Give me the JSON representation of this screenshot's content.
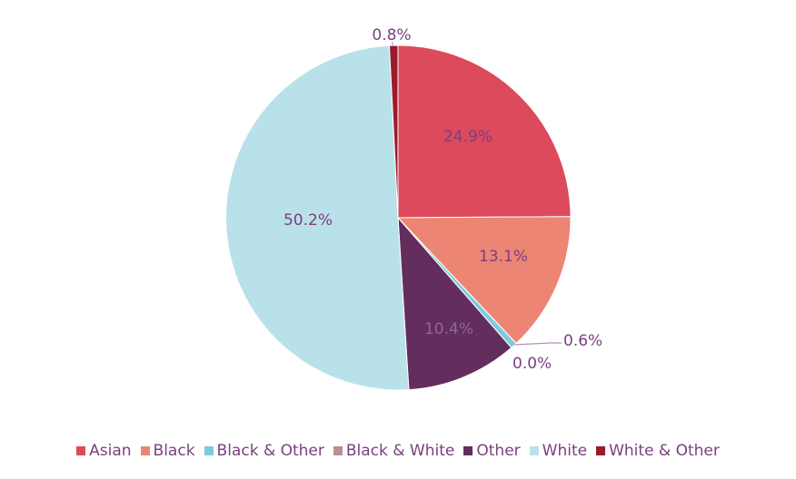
{
  "chart_data": {
    "type": "pie",
    "categories": [
      "Asian",
      "Black",
      "Black & Other",
      "Black & White",
      "Other",
      "White",
      "White & Other"
    ],
    "values": [
      24.9,
      13.1,
      0.6,
      0.0,
      10.4,
      50.2,
      0.8
    ],
    "labels": [
      "24.9%",
      "13.1%",
      "0.6%",
      "0.0%",
      "10.4%",
      "50.2%",
      "0.8%"
    ],
    "colors": [
      "#dc4a5c",
      "#ec8574",
      "#7ecbdc",
      "#b98e98",
      "#632d5e",
      "#b9e1ea",
      "#9b1b2b"
    ],
    "start_angle_deg": 0,
    "direction": "clockwise",
    "legend_position": "bottom"
  }
}
